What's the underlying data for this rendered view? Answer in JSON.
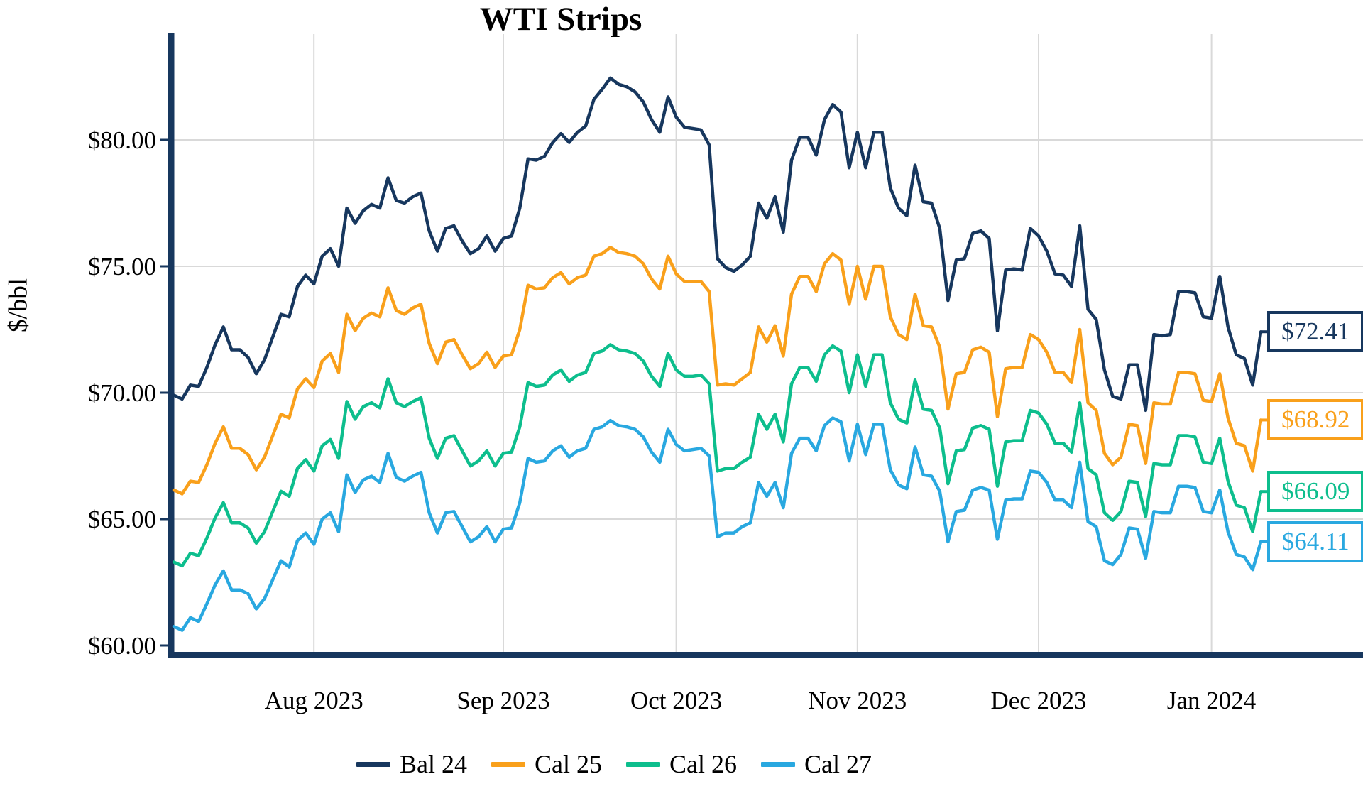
{
  "title": "WTI Strips",
  "y_axis": {
    "label": "$/bbl"
  },
  "colors": {
    "grid": "#D9D9D9",
    "axis": "#17375E",
    "background": "#FFFFFF"
  },
  "chart_data": {
    "type": "line",
    "title": "WTI Strips",
    "ylabel": "$/bbl",
    "grid": true,
    "legend_position": "bottom",
    "ylim": [
      59.6,
      84.2
    ],
    "n_points": 133,
    "y_ticks": [
      {
        "value": 80,
        "label": "$80.00"
      },
      {
        "value": 75,
        "label": "$75.00"
      },
      {
        "value": 70,
        "label": "$70.00"
      },
      {
        "value": 65,
        "label": "$65.00"
      },
      {
        "value": 60,
        "label": "$60.00"
      }
    ],
    "x_ticks": [
      {
        "label": "Aug 2023",
        "index": 17
      },
      {
        "label": "Sep 2023",
        "index": 40
      },
      {
        "label": "Oct 2023",
        "index": 61
      },
      {
        "label": "Nov 2023",
        "index": 83
      },
      {
        "label": "Dec 2023",
        "index": 105
      },
      {
        "label": "Jan 2024",
        "index": 126
      }
    ],
    "series": [
      {
        "name": "Bal 24",
        "color": "#17375E",
        "end_label": "$72.41",
        "values": [
          69.9,
          69.75,
          70.3,
          70.25,
          71.0,
          71.9,
          72.6,
          71.7,
          71.7,
          71.4,
          70.75,
          71.3,
          72.2,
          73.1,
          73.0,
          74.2,
          74.65,
          74.3,
          75.4,
          75.7,
          75.0,
          77.3,
          76.7,
          77.2,
          77.45,
          77.3,
          78.5,
          77.6,
          77.5,
          77.75,
          77.9,
          76.4,
          75.6,
          76.5,
          76.6,
          76.0,
          75.5,
          75.7,
          76.2,
          75.6,
          76.1,
          76.2,
          77.3,
          79.25,
          79.2,
          79.35,
          79.9,
          80.25,
          79.9,
          80.3,
          80.55,
          81.6,
          82.0,
          82.45,
          82.2,
          82.1,
          81.9,
          81.5,
          80.8,
          80.3,
          81.7,
          80.9,
          80.5,
          80.45,
          80.4,
          79.8,
          75.3,
          74.95,
          74.8,
          75.05,
          75.4,
          77.5,
          76.9,
          77.75,
          76.35,
          79.2,
          80.1,
          80.1,
          79.4,
          80.8,
          81.4,
          81.1,
          78.9,
          80.3,
          78.9,
          80.3,
          80.3,
          78.1,
          77.3,
          77.0,
          79.0,
          77.55,
          77.5,
          76.5,
          73.65,
          75.25,
          75.3,
          76.3,
          76.4,
          76.1,
          72.45,
          74.85,
          74.9,
          74.85,
          76.5,
          76.2,
          75.6,
          74.7,
          74.65,
          74.2,
          76.6,
          73.3,
          72.9,
          70.9,
          69.85,
          69.75,
          71.1,
          71.1,
          69.3,
          72.3,
          72.25,
          72.3,
          74.0,
          74.0,
          73.95,
          73.0,
          72.95,
          74.6,
          72.6,
          71.5,
          71.35,
          70.3,
          72.41
        ]
      },
      {
        "name": "Cal 25",
        "color": "#F9A01B",
        "end_label": "$68.92",
        "values": [
          66.15,
          66.0,
          66.5,
          66.45,
          67.15,
          68.0,
          68.65,
          67.8,
          67.8,
          67.55,
          66.95,
          67.45,
          68.3,
          69.15,
          69.0,
          70.15,
          70.55,
          70.2,
          71.25,
          71.55,
          70.8,
          73.1,
          72.45,
          72.95,
          73.15,
          73.0,
          74.15,
          73.25,
          73.1,
          73.35,
          73.5,
          71.95,
          71.15,
          72.0,
          72.1,
          71.5,
          70.95,
          71.15,
          71.6,
          71.0,
          71.45,
          71.5,
          72.5,
          74.25,
          74.1,
          74.15,
          74.55,
          74.75,
          74.3,
          74.55,
          74.65,
          75.4,
          75.5,
          75.75,
          75.55,
          75.5,
          75.4,
          75.1,
          74.5,
          74.1,
          75.4,
          74.7,
          74.4,
          74.4,
          74.4,
          74.0,
          70.3,
          70.35,
          70.3,
          70.55,
          70.8,
          72.6,
          72.0,
          72.65,
          71.45,
          73.9,
          74.6,
          74.6,
          74.0,
          75.1,
          75.5,
          75.25,
          73.5,
          75.0,
          73.7,
          75.0,
          75.0,
          73.0,
          72.3,
          72.1,
          73.9,
          72.65,
          72.6,
          71.8,
          69.35,
          70.75,
          70.8,
          71.7,
          71.8,
          71.6,
          69.05,
          70.95,
          71.0,
          71.0,
          72.3,
          72.1,
          71.6,
          70.8,
          70.8,
          70.4,
          72.5,
          69.6,
          69.3,
          67.6,
          67.15,
          67.45,
          68.75,
          68.7,
          67.2,
          69.6,
          69.55,
          69.55,
          70.8,
          70.8,
          70.75,
          69.7,
          69.65,
          70.75,
          69.0,
          68.0,
          67.9,
          66.9,
          68.92
        ]
      },
      {
        "name": "Cal 26",
        "color": "#0DBE8D",
        "end_label": "$66.09",
        "values": [
          63.3,
          63.15,
          63.65,
          63.55,
          64.25,
          65.05,
          65.65,
          64.85,
          64.85,
          64.65,
          64.05,
          64.5,
          65.3,
          66.1,
          65.9,
          67.0,
          67.35,
          66.9,
          67.9,
          68.15,
          67.4,
          69.65,
          68.95,
          69.45,
          69.6,
          69.4,
          70.55,
          69.6,
          69.45,
          69.65,
          69.8,
          68.2,
          67.4,
          68.2,
          68.3,
          67.7,
          67.1,
          67.3,
          67.7,
          67.1,
          67.6,
          67.65,
          68.65,
          70.4,
          70.25,
          70.3,
          70.7,
          70.9,
          70.45,
          70.7,
          70.8,
          71.55,
          71.65,
          71.9,
          71.7,
          71.65,
          71.55,
          71.25,
          70.65,
          70.25,
          71.55,
          70.9,
          70.65,
          70.65,
          70.7,
          70.35,
          66.9,
          67.0,
          67.0,
          67.25,
          67.45,
          69.15,
          68.55,
          69.15,
          68.05,
          70.35,
          71.0,
          71.0,
          70.45,
          71.5,
          71.85,
          71.65,
          70.0,
          71.5,
          70.25,
          71.5,
          71.5,
          69.6,
          68.95,
          68.8,
          70.5,
          69.35,
          69.3,
          68.6,
          66.4,
          67.7,
          67.75,
          68.6,
          68.7,
          68.55,
          66.3,
          68.05,
          68.1,
          68.1,
          69.3,
          69.2,
          68.75,
          68.0,
          68.0,
          67.65,
          69.6,
          67.0,
          66.75,
          65.25,
          64.95,
          65.3,
          66.5,
          66.45,
          65.1,
          67.2,
          67.15,
          67.15,
          68.3,
          68.3,
          68.25,
          67.25,
          67.2,
          68.2,
          66.5,
          65.55,
          65.45,
          64.5,
          66.09
        ]
      },
      {
        "name": "Cal 27",
        "color": "#29A8E0",
        "end_label": "$64.11",
        "values": [
          60.75,
          60.6,
          61.1,
          60.95,
          61.65,
          62.4,
          62.95,
          62.2,
          62.2,
          62.05,
          61.45,
          61.85,
          62.6,
          63.35,
          63.1,
          64.15,
          64.45,
          64.0,
          65.0,
          65.25,
          64.5,
          66.75,
          66.05,
          66.55,
          66.7,
          66.45,
          67.6,
          66.65,
          66.5,
          66.7,
          66.85,
          65.25,
          64.45,
          65.25,
          65.3,
          64.7,
          64.1,
          64.3,
          64.7,
          64.1,
          64.6,
          64.65,
          65.65,
          67.4,
          67.25,
          67.3,
          67.7,
          67.9,
          67.45,
          67.7,
          67.8,
          68.55,
          68.65,
          68.9,
          68.7,
          68.65,
          68.55,
          68.25,
          67.65,
          67.25,
          68.55,
          67.95,
          67.7,
          67.75,
          67.8,
          67.5,
          64.3,
          64.45,
          64.45,
          64.7,
          64.85,
          66.45,
          65.9,
          66.45,
          65.45,
          67.6,
          68.2,
          68.2,
          67.7,
          68.7,
          69.0,
          68.85,
          67.3,
          68.75,
          67.55,
          68.75,
          68.75,
          66.95,
          66.35,
          66.2,
          67.85,
          66.75,
          66.7,
          66.1,
          64.1,
          65.3,
          65.35,
          66.15,
          66.25,
          66.15,
          64.2,
          65.75,
          65.8,
          65.8,
          66.9,
          66.85,
          66.45,
          65.75,
          65.75,
          65.45,
          67.25,
          64.9,
          64.7,
          63.35,
          63.2,
          63.6,
          64.65,
          64.6,
          63.45,
          65.3,
          65.25,
          65.25,
          66.3,
          66.3,
          66.25,
          65.3,
          65.25,
          66.15,
          64.5,
          63.6,
          63.5,
          63.0,
          64.11
        ]
      }
    ]
  }
}
